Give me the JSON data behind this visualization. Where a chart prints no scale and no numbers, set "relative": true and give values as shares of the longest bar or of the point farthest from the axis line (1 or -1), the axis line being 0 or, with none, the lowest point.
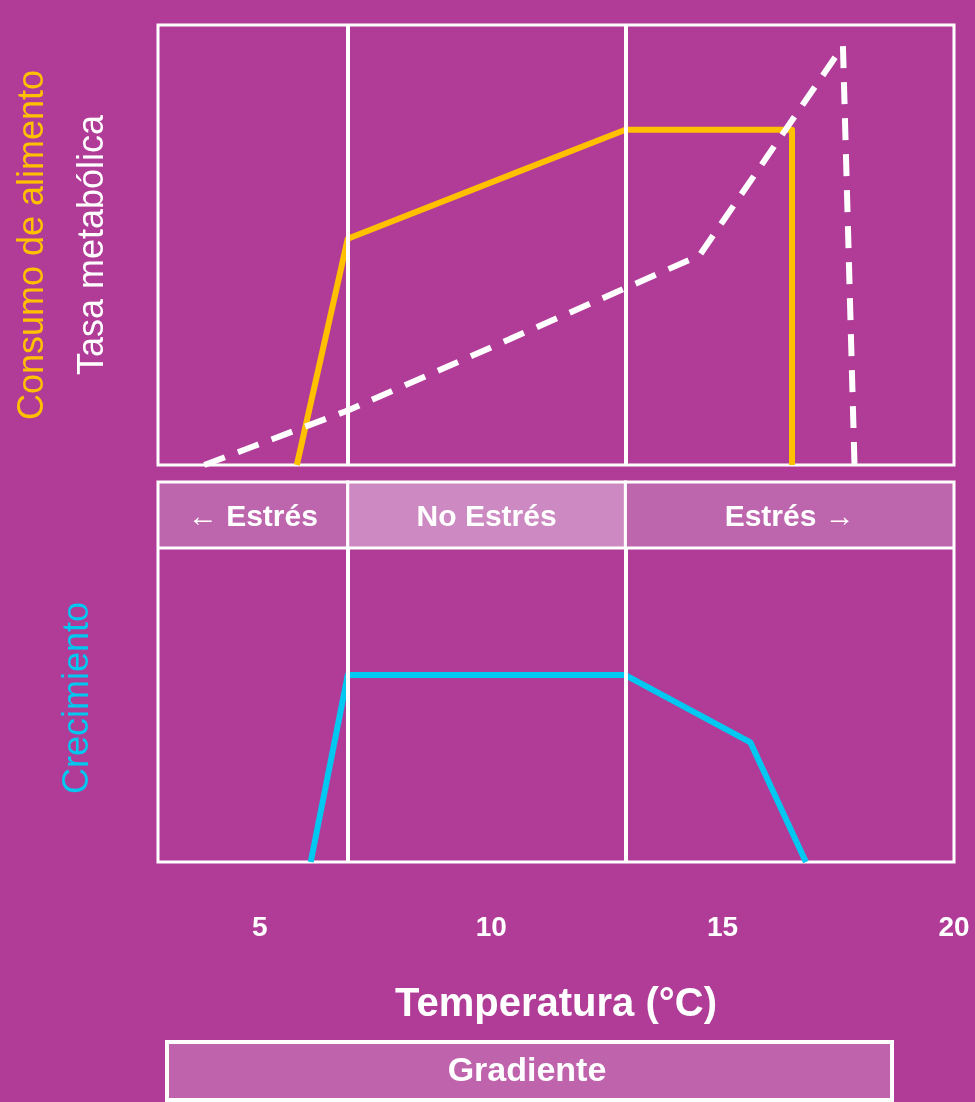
{
  "chart_data": [
    {
      "type": "line",
      "relative": true,
      "xlim": [
        2.8,
        20
      ],
      "tick_labels": false,
      "marker": "none",
      "series": [
        {
          "name": "Consumo de alimento",
          "color": "#ffc000",
          "x": [
            5.8,
            6.9,
            12.9,
            16.5,
            16.5
          ],
          "values": [
            0,
            0.54,
            0.8,
            0.8,
            0
          ]
        },
        {
          "name": "Tasa metabólica",
          "color": "#ffffff",
          "line_style": "dashed",
          "x": [
            3.8,
            6.9,
            14.5,
            17.6,
            17.85
          ],
          "values": [
            0,
            0.13,
            0.5,
            1,
            0
          ]
        }
      ],
      "ref_lines": [
        {
          "axis": "x",
          "value": 6.9
        },
        {
          "axis": "x",
          "value": 12.9
        }
      ],
      "annotations": [
        "← Estrés",
        "No Estrés",
        "Estrés →"
      ]
    },
    {
      "type": "line",
      "relative": true,
      "xlim": [
        2.8,
        20
      ],
      "xticks": [
        5,
        10,
        15,
        20
      ],
      "tick_labels": "x",
      "marker": "none",
      "xlabel": "Temperatura (°C)",
      "series": [
        {
          "name": "Crecimiento",
          "color": "#00c8f0",
          "x": [
            6.1,
            6.9,
            12.9,
            15.6,
            16.8
          ],
          "values": [
            0,
            1,
            1,
            0.64,
            0
          ]
        }
      ],
      "ref_lines": [
        {
          "axis": "x",
          "value": 6.9
        },
        {
          "axis": "x",
          "value": 12.9
        }
      ],
      "annotations": [
        "Gradiente"
      ]
    }
  ]
}
